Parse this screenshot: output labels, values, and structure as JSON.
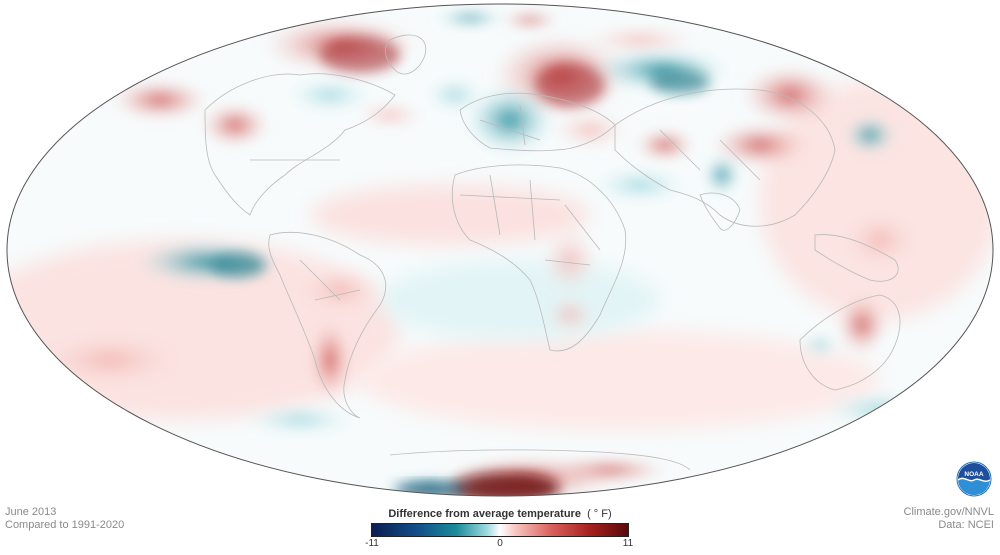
{
  "map": {
    "projection": "mollweide",
    "variable": "surface temperature anomaly",
    "colors": {
      "cold_extreme": "#0c1e52",
      "cold": "#1a8c9a",
      "neutral": "#ffffff",
      "warm": "#d9605d",
      "warm_extreme": "#5a0a0a",
      "outline": "#555555",
      "borders": "#b5b5b5"
    }
  },
  "footer": {
    "date": "June 2013",
    "baseline": "Compared to 1991-2020",
    "credit": "Climate.gov/NNVL",
    "source": "Data: NCEI"
  },
  "legend": {
    "title": "Difference from average temperature",
    "unit": "( ° F)",
    "min_label": "-11",
    "mid_label": "0",
    "max_label": "11",
    "range": [
      -11,
      11
    ]
  },
  "logo": {
    "text": "NOAA",
    "icon": "noaa-logo-icon"
  }
}
